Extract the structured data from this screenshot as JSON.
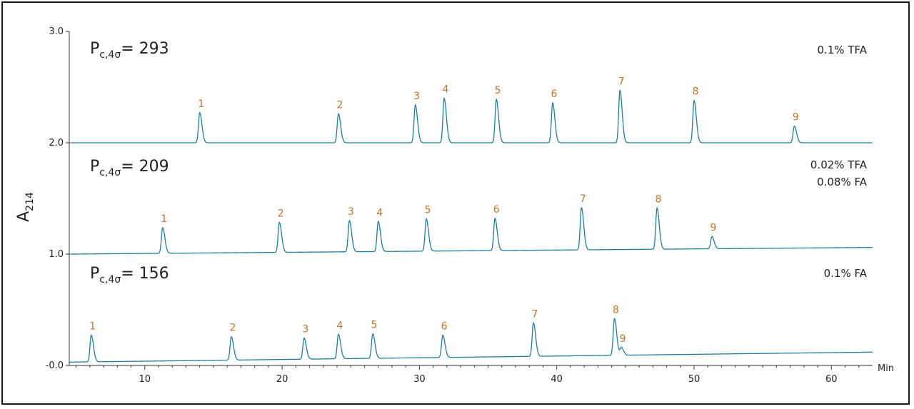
{
  "chart_data": {
    "type": "line",
    "ylabel": "A",
    "ylabel_sub": "214",
    "xlabel": "Min",
    "xlim": [
      4.5,
      63
    ],
    "ylim": [
      0,
      3.0
    ],
    "x_ticks": [
      10,
      20,
      30,
      40,
      50,
      60
    ],
    "y_ticks": [
      {
        "value": 0.0,
        "label": "-0.0"
      },
      {
        "value": 1.0,
        "label": "1.0"
      },
      {
        "value": 2.0,
        "label": "2.0"
      },
      {
        "value": 3.0,
        "label": "3.0"
      }
    ],
    "grid": false,
    "colors": {
      "trace": "#1d7f9c",
      "peak_label": "#c0762a",
      "axis": "#333333"
    },
    "series": [
      {
        "pc_label": "P",
        "pc_sub": "c,4σ",
        "pc_value": "= 293",
        "conditions": [
          "0.1% TFA"
        ],
        "baseline_start": 2.0,
        "baseline_end": 2.0,
        "peaks": [
          {
            "label": "1",
            "x": 14.0,
            "height": 0.27
          },
          {
            "label": "2",
            "x": 24.1,
            "height": 0.26
          },
          {
            "label": "3",
            "x": 29.7,
            "height": 0.34
          },
          {
            "label": "4",
            "x": 31.8,
            "height": 0.4
          },
          {
            "label": "5",
            "x": 35.6,
            "height": 0.39
          },
          {
            "label": "6",
            "x": 39.7,
            "height": 0.36
          },
          {
            "label": "7",
            "x": 44.6,
            "height": 0.47
          },
          {
            "label": "8",
            "x": 50.0,
            "height": 0.38
          },
          {
            "label": "9",
            "x": 57.3,
            "height": 0.15
          }
        ]
      },
      {
        "pc_label": "P",
        "pc_sub": "c,4σ",
        "pc_value": "= 209",
        "conditions": [
          "0.02% TFA",
          "0.08% FA"
        ],
        "baseline_start": 1.0,
        "baseline_end": 1.06,
        "peaks": [
          {
            "label": "1",
            "x": 11.3,
            "height": 0.23
          },
          {
            "label": "2",
            "x": 19.8,
            "height": 0.27
          },
          {
            "label": "3",
            "x": 24.9,
            "height": 0.28
          },
          {
            "label": "4",
            "x": 27.0,
            "height": 0.27
          },
          {
            "label": "5",
            "x": 30.5,
            "height": 0.29
          },
          {
            "label": "6",
            "x": 35.5,
            "height": 0.29
          },
          {
            "label": "7",
            "x": 41.8,
            "height": 0.38
          },
          {
            "label": "8",
            "x": 47.3,
            "height": 0.37
          },
          {
            "label": "9",
            "x": 51.3,
            "height": 0.11
          }
        ]
      },
      {
        "pc_label": "P",
        "pc_sub": "c,4σ",
        "pc_value": "= 156",
        "conditions": [
          "0.1% FA"
        ],
        "baseline_start": 0.03,
        "baseline_end": 0.12,
        "peaks": [
          {
            "label": "1",
            "x": 6.1,
            "height": 0.24
          },
          {
            "label": "2",
            "x": 16.3,
            "height": 0.21
          },
          {
            "label": "3",
            "x": 21.6,
            "height": 0.19
          },
          {
            "label": "4",
            "x": 24.1,
            "height": 0.22
          },
          {
            "label": "5",
            "x": 26.6,
            "height": 0.22
          },
          {
            "label": "6",
            "x": 31.7,
            "height": 0.2
          },
          {
            "label": "7",
            "x": 38.3,
            "height": 0.3
          },
          {
            "label": "8",
            "x": 44.2,
            "height": 0.33
          },
          {
            "label": "9",
            "x": 44.7,
            "height": 0.07
          }
        ]
      }
    ]
  }
}
